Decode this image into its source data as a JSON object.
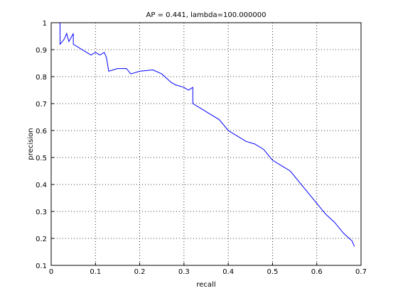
{
  "chart_data": {
    "type": "line",
    "title": "AP = 0.441, lambda=100.000000",
    "xlabel": "recall",
    "ylabel": "precision",
    "x": [
      0.02,
      0.02,
      0.03,
      0.035,
      0.04,
      0.05,
      0.05,
      0.06,
      0.07,
      0.08,
      0.09,
      0.1,
      0.11,
      0.12,
      0.125,
      0.13,
      0.15,
      0.17,
      0.18,
      0.2,
      0.23,
      0.25,
      0.27,
      0.28,
      0.3,
      0.31,
      0.32,
      0.32,
      0.34,
      0.36,
      0.38,
      0.4,
      0.42,
      0.44,
      0.46,
      0.48,
      0.5,
      0.52,
      0.54,
      0.56,
      0.58,
      0.6,
      0.62,
      0.64,
      0.66,
      0.68,
      0.685
    ],
    "series": [
      {
        "color": "#0000ff",
        "values": [
          1.0,
          0.92,
          0.94,
          0.96,
          0.93,
          0.96,
          0.92,
          0.91,
          0.9,
          0.89,
          0.88,
          0.89,
          0.88,
          0.89,
          0.87,
          0.82,
          0.83,
          0.83,
          0.81,
          0.82,
          0.825,
          0.81,
          0.78,
          0.77,
          0.76,
          0.75,
          0.76,
          0.7,
          0.68,
          0.66,
          0.64,
          0.6,
          0.58,
          0.56,
          0.55,
          0.53,
          0.49,
          0.47,
          0.45,
          0.41,
          0.37,
          0.33,
          0.29,
          0.26,
          0.22,
          0.19,
          0.17
        ]
      }
    ],
    "xlim": [
      0,
      0.7
    ],
    "xticks": [
      0,
      0.1,
      0.2,
      0.3,
      0.4,
      0.5,
      0.6,
      0.7
    ],
    "ylim": [
      0.1,
      1
    ],
    "yticks": [
      0.1,
      0.2,
      0.3,
      0.4,
      0.5,
      0.6,
      0.7,
      0.8,
      0.9,
      1
    ],
    "grid": true
  }
}
